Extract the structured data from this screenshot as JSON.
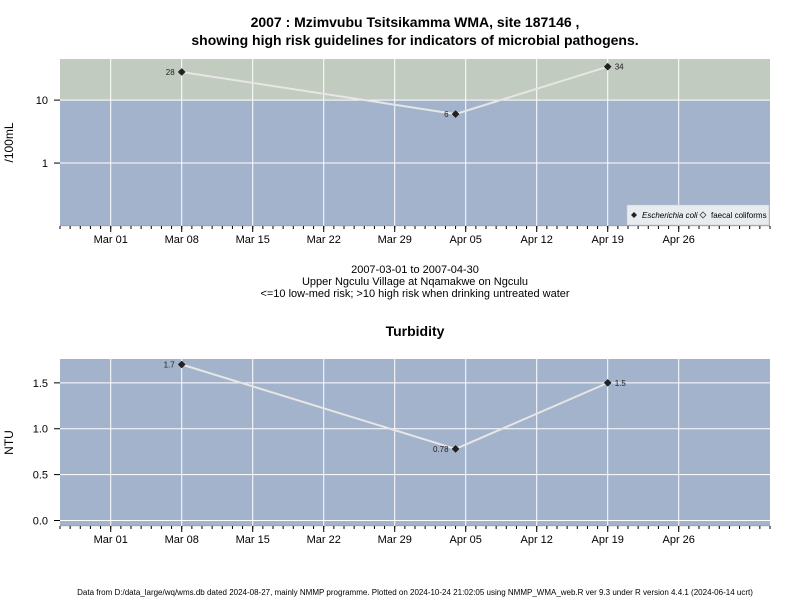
{
  "chart1": {
    "title_line1": "2007 : Mzimvubu Tsitsikamma WMA, site 187146 ,",
    "title_line2": "showing high risk guidelines for indicators of microbial pathogens.",
    "ylabel": "/100mL",
    "colors": {
      "low_risk": "#a3b3cb",
      "high_risk": "#c2cbbf",
      "line": "#e6e6e6",
      "grid": "#ffffff"
    },
    "guideline": 10,
    "ylim": [
      0.1,
      45
    ],
    "yscale": "log",
    "yticks": [
      {
        "value": 1,
        "label": "1"
      },
      {
        "value": 10,
        "label": "10"
      }
    ],
    "legend": {
      "position": "bottom-right",
      "items": [
        "Escherichia coli",
        "faecal coliforms"
      ]
    }
  },
  "xaxis": {
    "xlim": [
      "2007-02-24",
      "2007-05-05"
    ],
    "ticks": [
      {
        "date": "2007-03-01",
        "label": "Mar 01"
      },
      {
        "date": "2007-03-08",
        "label": "Mar 08"
      },
      {
        "date": "2007-03-15",
        "label": "Mar 15"
      },
      {
        "date": "2007-03-22",
        "label": "Mar 22"
      },
      {
        "date": "2007-03-29",
        "label": "Mar 29"
      },
      {
        "date": "2007-04-05",
        "label": "Apr 05"
      },
      {
        "date": "2007-04-12",
        "label": "Apr 12"
      },
      {
        "date": "2007-04-19",
        "label": "Apr 19"
      },
      {
        "date": "2007-04-26",
        "label": "Apr 26"
      }
    ]
  },
  "info": {
    "range": "2007-03-01 to 2007-04-30",
    "location": "Upper Ngculu Village at Nqamakwe on Ngculu",
    "risk_note": "<=10 low-med risk; >10 high risk when drinking untreated water"
  },
  "chart2": {
    "title": "Turbidity",
    "ylabel": "NTU",
    "colors": {
      "bg": "#a3b3cb",
      "line": "#e6e6e6",
      "grid": "#ffffff"
    },
    "ylim": [
      -0.06,
      1.76
    ],
    "yticks": [
      {
        "value": 0,
        "label": "0.0"
      },
      {
        "value": 0.5,
        "label": "0.5"
      },
      {
        "value": 1.0,
        "label": "1.0"
      },
      {
        "value": 1.5,
        "label": "1.5"
      }
    ]
  },
  "chart_data": [
    {
      "type": "line",
      "title": "2007 : Mzimvubu Tsitsikamma WMA, site 187146 , showing high risk guidelines for indicators of microbial pathogens.",
      "ylabel": "/100mL",
      "series": [
        {
          "name": "Escherichia coli",
          "points": [
            {
              "x": "2007-03-08",
              "y": 28,
              "label": "28"
            },
            {
              "x": "2007-04-04",
              "y": 6,
              "label": "6"
            },
            {
              "x": "2007-04-19",
              "y": 34,
              "label": "34"
            }
          ]
        }
      ]
    },
    {
      "type": "line",
      "title": "Turbidity",
      "ylabel": "NTU",
      "series": [
        {
          "name": "",
          "points": [
            {
              "x": "2007-03-08",
              "y": 1.7,
              "label": "1.7"
            },
            {
              "x": "2007-04-04",
              "y": 0.78,
              "label": "0.78"
            },
            {
              "x": "2007-04-19",
              "y": 1.5,
              "label": "1.5"
            }
          ]
        }
      ]
    }
  ],
  "footer": "Data from D:/data_large/wq/wms.db dated 2024-08-27, mainly NMMP programme. Plotted on 2024-10-24 21:02:05 using NMMP_WMA_web.R ver 9.3 under R version 4.4.1 (2024-06-14 ucrt)"
}
